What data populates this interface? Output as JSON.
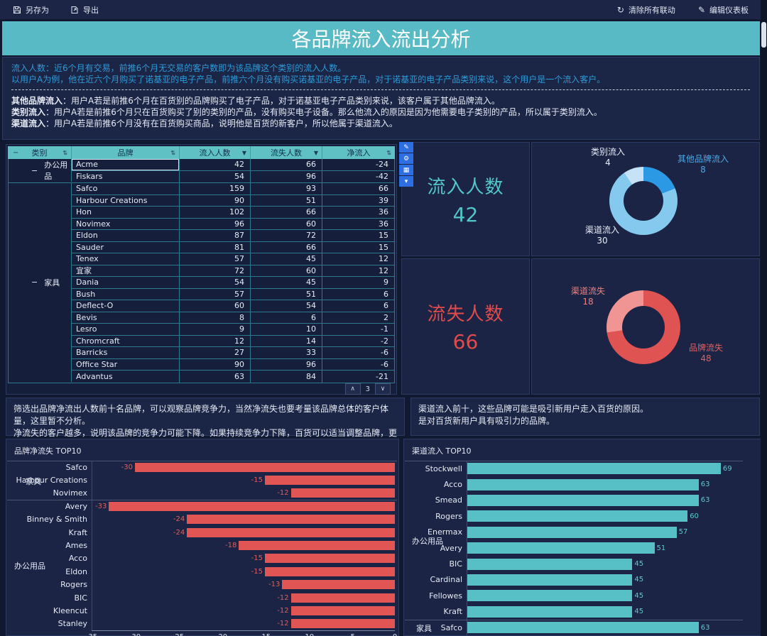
{
  "toolbar": {
    "save_as": "另存为",
    "export": "导出",
    "clear_linkage": "清除所有联动",
    "edit_dashboard": "编辑仪表板"
  },
  "page_title": "各品牌流入流出分析",
  "icons": {
    "sort": "⇅",
    "filter": "▼",
    "collapse": "−",
    "page_up": "∧",
    "page_down": "∨",
    "clear_linkage": "↻",
    "edit_pencil": "✎"
  },
  "widget_toolbar": [
    {
      "name": "edit-icon",
      "glyph": "✎"
    },
    {
      "name": "settings-icon",
      "glyph": "⚙"
    },
    {
      "name": "chart-type-icon",
      "glyph": "▦"
    },
    {
      "name": "dropdown-icon",
      "glyph": "▾"
    }
  ],
  "description": {
    "intro": [
      "流入人数：近6个月有交易，前推6个月无交易的客户数即为该品牌这个类别的流入人数。",
      "以用户A为例，他在近六个月购买了诺基亚的电子产品，前推六个月没有购买诺基亚的电子产品，对于诺基亚的电子产品类别来说，这个用户是一个流入客户。"
    ],
    "definitions": [
      {
        "term": "其他品牌流入",
        "desc": "：用户A若是前推6个月在百货别的品牌购买了电子产品，对于诺基亚电子产品类别来说，该客户属于其他品牌流入。"
      },
      {
        "term": "类别流入",
        "desc": "：用户A若是前推6个月只在百货购买了别的类别的产品，没有购买电子设备。那么他流入的原因是因为他需要电子类别的产品，所以属于类别流入。"
      },
      {
        "term": "渠道流入",
        "desc": "：用户A若是前推6个月没有在百货购买商品，说明他是百货的新客户，所以他属于渠道流入。"
      }
    ]
  },
  "table": {
    "columns": [
      "类别",
      "品牌",
      "流入人数",
      "流失人数",
      "净流入"
    ],
    "selected_cell": "Acme",
    "groups": [
      {
        "category": "办公用品",
        "rows": [
          [
            "Acme",
            42,
            66,
            -24
          ],
          [
            "Fiskars",
            54,
            96,
            -42
          ]
        ]
      },
      {
        "category": "家具",
        "rows": [
          [
            "Safco",
            159,
            93,
            66
          ],
          [
            "Harbour Creations",
            90,
            51,
            39
          ],
          [
            "Hon",
            102,
            66,
            36
          ],
          [
            "Novimex",
            96,
            60,
            36
          ],
          [
            "Eldon",
            87,
            72,
            15
          ],
          [
            "Sauder",
            81,
            66,
            15
          ],
          [
            "Tenex",
            57,
            45,
            12
          ],
          [
            "宜家",
            72,
            60,
            12
          ],
          [
            "Dania",
            54,
            45,
            9
          ],
          [
            "Bush",
            57,
            51,
            6
          ],
          [
            "Deflect-O",
            60,
            54,
            6
          ],
          [
            "Bevis",
            8,
            6,
            2
          ],
          [
            "Lesro",
            9,
            10,
            -1
          ],
          [
            "Chromcraft",
            12,
            14,
            -2
          ],
          [
            "Barricks",
            27,
            33,
            -6
          ],
          [
            "Office Star",
            90,
            96,
            -6
          ],
          [
            "Advantus",
            63,
            84,
            -21
          ]
        ]
      }
    ],
    "pagination": {
      "page": "3"
    }
  },
  "kpis": [
    {
      "label": "流入人数",
      "value": "42",
      "color": "#53c6ca"
    },
    {
      "label": "流失人数",
      "value": "66",
      "color": "#e04b4b"
    }
  ],
  "notes": {
    "left": [
      "筛选出品牌净流出人数前十名品牌，可以观察品牌竞争力，当然净流失也要考量该品牌总体的客户体量，这里暂不分析。",
      "净流失的客户越多，说明该品牌的竞争力可能下降。如果持续竞争力下降，百货可以适当调整品牌，更换更具竞争力的品牌。"
    ],
    "right": [
      "渠道流入前十，这些品牌可能是吸引新用户走入百货的原因。",
      "是对百货新用户具有吸引力的品牌。"
    ]
  },
  "chart_data": [
    {
      "id": "inflow-composition-donut",
      "type": "pie",
      "title": "",
      "donut": true,
      "start_angle": "top",
      "direction": "clockwise",
      "slices": [
        {
          "label": "其他品牌流入",
          "value": 8,
          "color": "#2b99e3"
        },
        {
          "label": "渠道流入",
          "value": 30,
          "color": "#85c9ee"
        },
        {
          "label": "类别流入",
          "value": 4,
          "color": "#c6e2f6"
        }
      ]
    },
    {
      "id": "outflow-composition-donut",
      "type": "pie",
      "title": "",
      "donut": true,
      "start_angle": "top",
      "direction": "clockwise",
      "slices": [
        {
          "label": "品牌流失",
          "value": 48,
          "color": "#df5353"
        },
        {
          "label": "渠道流失",
          "value": 18,
          "color": "#f09494"
        }
      ]
    },
    {
      "id": "brand-net-loss-top10",
      "type": "bar",
      "orientation": "horizontal",
      "title": "品牌净流失 TOP10",
      "xlim": [
        -35,
        0
      ],
      "x_ticks": [
        -35,
        -30,
        -25,
        -20,
        -15,
        -10,
        -5,
        0
      ],
      "bar_color": "#e25555",
      "value_color": "#dd5f5f",
      "groups": [
        {
          "name": "家具",
          "start": 0,
          "end": 2
        },
        {
          "name": "办公用品",
          "start": 3,
          "end": 12
        }
      ],
      "rows": [
        {
          "label": "Safco",
          "value": -30
        },
        {
          "label": "Harbour Creations",
          "value": -15
        },
        {
          "label": "Novimex",
          "value": -12
        },
        {
          "label": "Avery",
          "value": -33
        },
        {
          "label": "Binney & Smith",
          "value": -24
        },
        {
          "label": "Kraft",
          "value": -24
        },
        {
          "label": "Ames",
          "value": -18
        },
        {
          "label": "Acco",
          "value": -15
        },
        {
          "label": "Eldon",
          "value": -15
        },
        {
          "label": "Rogers",
          "value": -13
        },
        {
          "label": "BIC",
          "value": -12
        },
        {
          "label": "Kleencut",
          "value": -12
        },
        {
          "label": "Stanley",
          "value": -12
        }
      ]
    },
    {
      "id": "channel-inflow-top10",
      "type": "bar",
      "orientation": "horizontal",
      "title": "渠道流入 TOP10",
      "xlim": [
        0,
        75
      ],
      "x_ticks": [],
      "bar_color": "#57bfc6",
      "value_color": "#5fc9cf",
      "groups": [
        {
          "name": "办公用品",
          "start": 0,
          "end": 9
        },
        {
          "name": "家具",
          "start": 10,
          "end": 10
        }
      ],
      "rows": [
        {
          "label": "Stockwell",
          "value": 69
        },
        {
          "label": "Acco",
          "value": 63
        },
        {
          "label": "Smead",
          "value": 63
        },
        {
          "label": "Rogers",
          "value": 60
        },
        {
          "label": "Enermax",
          "value": 57
        },
        {
          "label": "Avery",
          "value": 51
        },
        {
          "label": "BIC",
          "value": 45
        },
        {
          "label": "Cardinal",
          "value": 45
        },
        {
          "label": "Fellowes",
          "value": 45
        },
        {
          "label": "Kraft",
          "value": 45
        },
        {
          "label": "Safco",
          "value": 63
        }
      ]
    }
  ]
}
